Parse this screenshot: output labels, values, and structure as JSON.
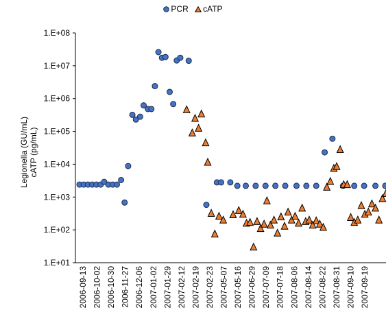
{
  "chart_data": {
    "type": "scatter",
    "title": "",
    "legend_position": "top",
    "ylabel_line1": "Legionella (GU/mL)",
    "ylabel_line2": "cATP (pg/mL)",
    "yscale": "log",
    "ylim": [
      10,
      100000000
    ],
    "yticks": [
      "1.E+01",
      "1.E+02",
      "1.E+03",
      "1.E+04",
      "1.E+05",
      "1.E+06",
      "1.E+07",
      "1.E+08"
    ],
    "xlabels": [
      "2006-09-13",
      "2006-10-02",
      "2006-10-30",
      "2006-11-27",
      "2006-12-06",
      "2007-01-02",
      "2007-01-29",
      "2007-02-12",
      "2007-02-19",
      "2007-02-23",
      "2007-05-07",
      "2007-05-16",
      "2007-06-29",
      "2007-07-09",
      "2007-07-18",
      "2007-08-06",
      "2007-08-14",
      "2007-08-22",
      "2007-08-31",
      "2007-09-10",
      "2007-09-19"
    ],
    "series": [
      {
        "name": "PCR",
        "marker": "circle",
        "color": "#4472c4",
        "points": [
          [
            0.0,
            2400
          ],
          [
            0.3,
            2400
          ],
          [
            0.6,
            2400
          ],
          [
            0.9,
            2400
          ],
          [
            1.2,
            2400
          ],
          [
            1.5,
            2400
          ],
          [
            1.75,
            2900
          ],
          [
            2.05,
            2400
          ],
          [
            2.35,
            2400
          ],
          [
            2.65,
            2400
          ],
          [
            2.95,
            3300
          ],
          [
            3.2,
            680
          ],
          [
            3.45,
            8800
          ],
          [
            3.75,
            320000
          ],
          [
            4.0,
            230000
          ],
          [
            4.3,
            280000
          ],
          [
            4.55,
            620000
          ],
          [
            4.85,
            480000
          ],
          [
            5.1,
            480000
          ],
          [
            5.35,
            2400000
          ],
          [
            5.6,
            26000000
          ],
          [
            5.85,
            17500000
          ],
          [
            6.1,
            18500000
          ],
          [
            6.4,
            1600000
          ],
          [
            6.65,
            680000
          ],
          [
            6.9,
            14500000
          ],
          [
            7.15,
            17500000
          ],
          [
            7.75,
            14200000
          ],
          [
            9.0,
            580
          ],
          [
            9.75,
            2800
          ],
          [
            10.05,
            2800
          ],
          [
            10.7,
            2800
          ],
          [
            11.2,
            2200
          ],
          [
            11.8,
            2200
          ],
          [
            12.5,
            2200
          ],
          [
            13.2,
            2200
          ],
          [
            13.9,
            2200
          ],
          [
            14.6,
            2200
          ],
          [
            15.4,
            2200
          ],
          [
            16.1,
            2200
          ],
          [
            16.8,
            2200
          ],
          [
            17.4,
            23000
          ],
          [
            17.95,
            60000
          ],
          [
            18.7,
            2200
          ],
          [
            19.5,
            2200
          ],
          [
            20.2,
            2200
          ],
          [
            21.0,
            2200
          ],
          [
            21.7,
            2200
          ]
        ]
      },
      {
        "name": "cATP",
        "marker": "triangle",
        "color": "#ed7d31",
        "points": [
          [
            7.6,
            460000
          ],
          [
            8.0,
            90000
          ],
          [
            8.2,
            250000
          ],
          [
            8.45,
            125000
          ],
          [
            8.65,
            340000
          ],
          [
            8.95,
            45000
          ],
          [
            9.1,
            11500
          ],
          [
            9.35,
            320
          ],
          [
            9.6,
            75
          ],
          [
            9.9,
            260
          ],
          [
            10.2,
            200
          ],
          [
            10.9,
            290
          ],
          [
            11.3,
            390
          ],
          [
            11.6,
            300
          ],
          [
            11.85,
            160
          ],
          [
            12.1,
            170
          ],
          [
            12.35,
            30
          ],
          [
            12.6,
            180
          ],
          [
            12.85,
            110
          ],
          [
            13.1,
            150
          ],
          [
            13.3,
            770
          ],
          [
            13.55,
            140
          ],
          [
            13.8,
            200
          ],
          [
            14.05,
            80
          ],
          [
            14.3,
            250
          ],
          [
            14.55,
            130
          ],
          [
            14.8,
            350
          ],
          [
            15.05,
            200
          ],
          [
            15.3,
            260
          ],
          [
            15.55,
            160
          ],
          [
            15.8,
            460
          ],
          [
            16.05,
            180
          ],
          [
            16.3,
            200
          ],
          [
            16.55,
            140
          ],
          [
            16.8,
            190
          ],
          [
            17.05,
            150
          ],
          [
            17.3,
            120
          ],
          [
            17.55,
            2000
          ],
          [
            17.8,
            3000
          ],
          [
            18.05,
            7500
          ],
          [
            18.25,
            8500
          ],
          [
            18.5,
            28000
          ],
          [
            18.75,
            2400
          ],
          [
            19.0,
            2400
          ],
          [
            19.25,
            240
          ],
          [
            19.5,
            170
          ],
          [
            19.75,
            200
          ],
          [
            20.0,
            550
          ],
          [
            20.25,
            300
          ],
          [
            20.5,
            350
          ],
          [
            20.75,
            620
          ],
          [
            21.0,
            460
          ],
          [
            21.25,
            200
          ],
          [
            21.5,
            900
          ],
          [
            21.75,
            1300
          ],
          [
            22.1,
            250
          ],
          [
            22.4,
            115
          ],
          [
            22.7,
            115
          ]
        ]
      }
    ]
  }
}
